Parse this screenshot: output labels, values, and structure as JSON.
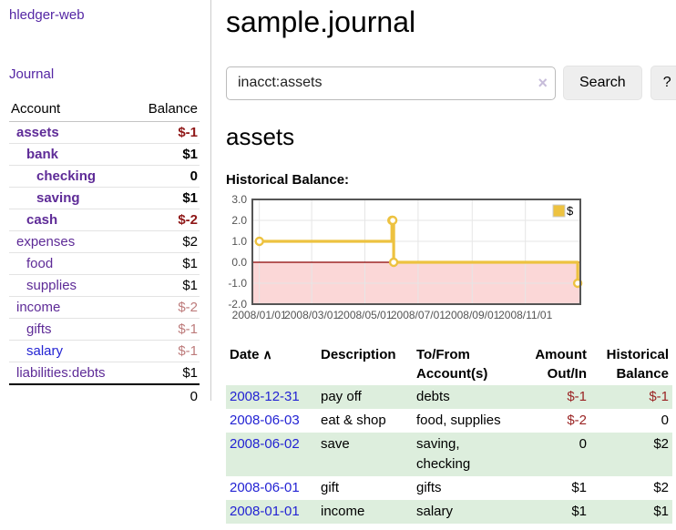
{
  "sidebar": {
    "app_title": "hledger-web",
    "journal_link": "Journal",
    "table": {
      "account_header": "Account",
      "balance_header": "Balance",
      "accounts": [
        {
          "label": "assets",
          "level": 1,
          "bold": true,
          "link_color": "purple",
          "balance": "$-1",
          "balance_tone": "neg-strong",
          "balance_bold": true
        },
        {
          "label": "bank",
          "level": 2,
          "bold": true,
          "link_color": "purple",
          "balance": "$1",
          "balance_tone": "normal",
          "balance_bold": true
        },
        {
          "label": "checking",
          "level": 3,
          "bold": true,
          "link_color": "purple",
          "balance": "0",
          "balance_tone": "normal",
          "balance_bold": true
        },
        {
          "label": "saving",
          "level": 3,
          "bold": true,
          "link_color": "purple",
          "balance": "$1",
          "balance_tone": "normal",
          "balance_bold": true
        },
        {
          "label": "cash",
          "level": 2,
          "bold": true,
          "link_color": "purple",
          "balance": "$-2",
          "balance_tone": "neg-strong",
          "balance_bold": true
        },
        {
          "label": "expenses",
          "level": 1,
          "bold": false,
          "link_color": "purple",
          "balance": "$2",
          "balance_tone": "normal",
          "balance_bold": false
        },
        {
          "label": "food",
          "level": 2,
          "bold": false,
          "link_color": "purple",
          "balance": "$1",
          "balance_tone": "normal",
          "balance_bold": false
        },
        {
          "label": "supplies",
          "level": 2,
          "bold": false,
          "link_color": "purple",
          "balance": "$1",
          "balance_tone": "normal",
          "balance_bold": false
        },
        {
          "label": "income",
          "level": 1,
          "bold": false,
          "link_color": "purple",
          "balance": "$-2",
          "balance_tone": "neg-soft",
          "balance_bold": false
        },
        {
          "label": "gifts",
          "level": 2,
          "bold": false,
          "link_color": "purple",
          "balance": "$-1",
          "balance_tone": "neg-soft",
          "balance_bold": false
        },
        {
          "label": "salary",
          "level": 2,
          "bold": false,
          "link_color": "blue",
          "balance": "$-1",
          "balance_tone": "neg-soft",
          "balance_bold": false
        },
        {
          "label": "liabilities:debts",
          "level": 1,
          "bold": false,
          "link_color": "purple",
          "balance": "$1",
          "balance_tone": "normal",
          "balance_bold": false
        }
      ],
      "total": "0"
    }
  },
  "main": {
    "title": "sample.journal",
    "search": {
      "value": "inacct:assets",
      "clear_icon": "×",
      "search_label": "Search",
      "help_label": "?"
    },
    "account_heading": "assets",
    "chart_heading": "Historical Balance:",
    "transactions": {
      "head": {
        "date": "Date",
        "sort_icon": "∧",
        "description": "Description",
        "tofrom_line1": "To/From",
        "tofrom_line2": "Account(s)",
        "amount_line1": "Amount",
        "amount_line2": "Out/In",
        "hist_line1": "Historical",
        "hist_line2": "Balance"
      },
      "rows": [
        {
          "date": "2008-12-31",
          "description": "pay off",
          "accounts": "debts",
          "amount": "$-1",
          "amount_negative": true,
          "balance": "$-1",
          "balance_negative": true,
          "highlight": true
        },
        {
          "date": "2008-06-03",
          "description": "eat & shop",
          "accounts": "food, supplies",
          "amount": "$-2",
          "amount_negative": true,
          "balance": "0",
          "balance_negative": false,
          "highlight": false
        },
        {
          "date": "2008-06-02",
          "description": "save",
          "accounts": "saving, checking",
          "amount": "0",
          "amount_negative": false,
          "balance": "$2",
          "balance_negative": false,
          "highlight": true
        },
        {
          "date": "2008-06-01",
          "description": "gift",
          "accounts": "gifts",
          "amount": "$1",
          "amount_negative": false,
          "balance": "$2",
          "balance_negative": false,
          "highlight": false
        },
        {
          "date": "2008-01-01",
          "description": "income",
          "accounts": "salary",
          "amount": "$1",
          "amount_negative": false,
          "balance": "$1",
          "balance_negative": false,
          "highlight": true
        }
      ]
    }
  },
  "chart_data": {
    "type": "line",
    "step": true,
    "title": "Historical Balance:",
    "series": [
      {
        "name": "$",
        "color": "#edc240",
        "points": [
          [
            "2008-01-01",
            1
          ],
          [
            "2008-06-01",
            2
          ],
          [
            "2008-06-02",
            2
          ],
          [
            "2008-06-03",
            0
          ],
          [
            "2008-12-31",
            -1
          ]
        ]
      }
    ],
    "x_ticks": [
      {
        "date": "2008-01-01",
        "label": "2008/01/01"
      },
      {
        "date": "2008-03-01",
        "label": "2008/03/01"
      },
      {
        "date": "2008-05-01",
        "label": "2008/05/01"
      },
      {
        "date": "2008-07-01",
        "label": "2008/07/01"
      },
      {
        "date": "2008-09-01",
        "label": "2008/09/01"
      },
      {
        "date": "2008-11-01",
        "label": "2008/11/01"
      }
    ],
    "y_ticks": [
      3.0,
      2.0,
      1.0,
      0.0,
      -1.0,
      -2.0
    ],
    "x_range": [
      "2007-12-24",
      "2009-01-03"
    ],
    "y_range": [
      -2,
      3
    ],
    "grid": true,
    "legend_position": "top-right",
    "colors": {
      "grid": "#e6e6e6",
      "border": "#555555",
      "negative_region": "#fbd7d7",
      "zero_line": "#8b0000",
      "tick_text": "#545454"
    }
  }
}
